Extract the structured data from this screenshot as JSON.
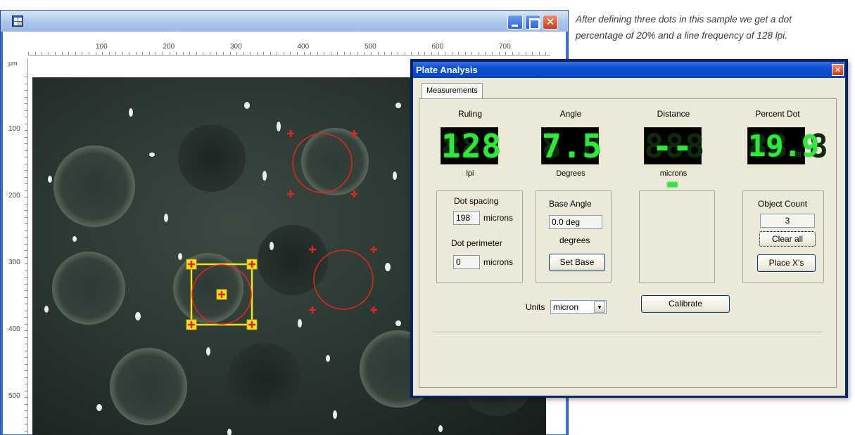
{
  "caption": {
    "line1": "After defining three dots in this sample we get a dot",
    "line2": "percentage of 20% and a line frequency of 128 lpi."
  },
  "image_window": {
    "title_icon": "app-grid-icon",
    "controls": {
      "minimize": "minimize-icon",
      "maximize": "maximize-icon",
      "close": "✕"
    },
    "ruler": {
      "unit": "µm",
      "x_ticks": [
        "100",
        "200",
        "300",
        "400",
        "500",
        "600",
        "700"
      ],
      "y_ticks": [
        "100",
        "200",
        "300",
        "400",
        "500"
      ]
    }
  },
  "dialog": {
    "title": "Plate Analysis",
    "close_glyph": "✕",
    "tab": "Measurements",
    "meters": {
      "ruling": {
        "label": "Ruling",
        "value": "128",
        "unit": "lpi"
      },
      "angle": {
        "label": "Angle",
        "value": "7.5",
        "unit": "Degrees"
      },
      "distance": {
        "label": "Distance",
        "value": "---",
        "unit": "microns"
      },
      "percent": {
        "label": "Percent Dot",
        "value": "19.9",
        "unit": ""
      }
    },
    "dot_group": {
      "spacing_label": "Dot spacing",
      "spacing_value": "198",
      "spacing_unit": "microns",
      "perimeter_label": "Dot perimeter",
      "perimeter_value": "0",
      "perimeter_unit": "microns"
    },
    "angle_group": {
      "base_label": "Base Angle",
      "base_value": "0.0 deg",
      "base_unit": "degrees",
      "set_button": "Set Base"
    },
    "count_group": {
      "label": "Object Count",
      "value": "3",
      "clear_button": "Clear all",
      "place_button": "Place X's"
    },
    "units_label": "Units",
    "units_value": "micron",
    "calibrate_button": "Calibrate"
  },
  "colors": {
    "lcd_green": "#2fe83a",
    "selection_yellow": "#f5e21c",
    "marker_red": "#e3261b",
    "title_blue": "#0846c7"
  }
}
